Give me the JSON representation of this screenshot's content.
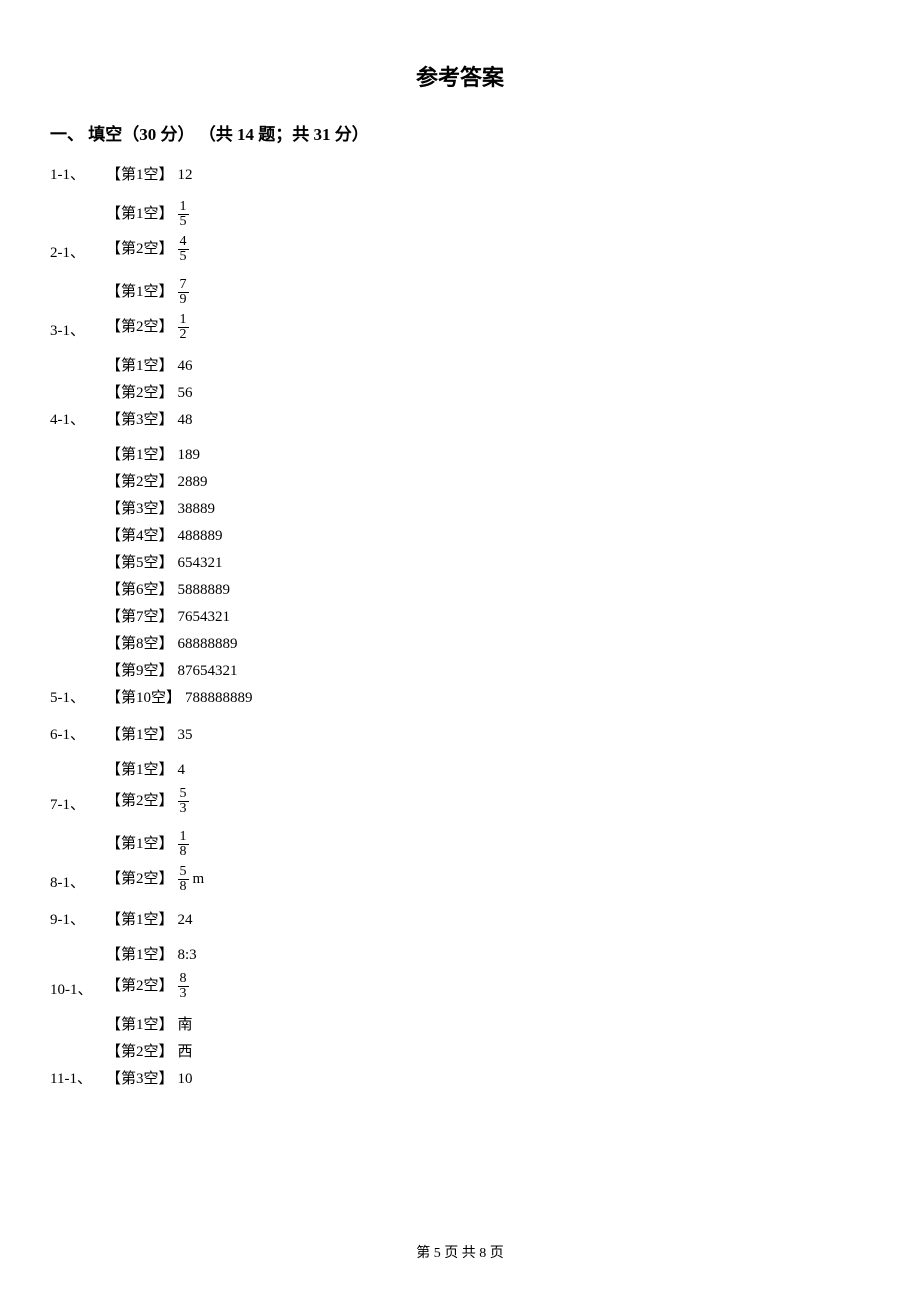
{
  "title": "参考答案",
  "section_heading": "一、 填空（30 分） （共 14 题；共 31 分）",
  "blank_label_prefix": "【第",
  "blank_label_suffix": "空】",
  "questions": [
    {
      "num": "1-1、",
      "blanks": [
        {
          "i": 1,
          "type": "text",
          "value": "12"
        }
      ]
    },
    {
      "num": "2-1、",
      "blanks": [
        {
          "i": 1,
          "type": "frac",
          "n": "1",
          "d": "5"
        },
        {
          "i": 2,
          "type": "frac",
          "n": "4",
          "d": "5"
        }
      ]
    },
    {
      "num": "3-1、",
      "blanks": [
        {
          "i": 1,
          "type": "frac",
          "n": "7",
          "d": "9"
        },
        {
          "i": 2,
          "type": "frac",
          "n": "1",
          "d": "2"
        }
      ]
    },
    {
      "num": "4-1、",
      "blanks": [
        {
          "i": 1,
          "type": "text",
          "value": "46"
        },
        {
          "i": 2,
          "type": "text",
          "value": "56"
        },
        {
          "i": 3,
          "type": "text",
          "value": "48"
        }
      ]
    },
    {
      "num": "5-1、",
      "blanks": [
        {
          "i": 1,
          "type": "text",
          "value": "189"
        },
        {
          "i": 2,
          "type": "text",
          "value": "2889"
        },
        {
          "i": 3,
          "type": "text",
          "value": "38889"
        },
        {
          "i": 4,
          "type": "text",
          "value": "488889"
        },
        {
          "i": 5,
          "type": "text",
          "value": "654321"
        },
        {
          "i": 6,
          "type": "text",
          "value": "5888889"
        },
        {
          "i": 7,
          "type": "text",
          "value": "7654321"
        },
        {
          "i": 8,
          "type": "text",
          "value": "68888889"
        },
        {
          "i": 9,
          "type": "text",
          "value": "87654321"
        },
        {
          "i": 10,
          "type": "text",
          "value": "788888889"
        }
      ]
    },
    {
      "num": "6-1、",
      "blanks": [
        {
          "i": 1,
          "type": "text",
          "value": "35"
        }
      ]
    },
    {
      "num": "7-1、",
      "blanks": [
        {
          "i": 1,
          "type": "text",
          "value": "4"
        },
        {
          "i": 2,
          "type": "frac",
          "n": "5",
          "d": "3"
        }
      ]
    },
    {
      "num": "8-1、",
      "blanks": [
        {
          "i": 1,
          "type": "frac",
          "n": "1",
          "d": "8"
        },
        {
          "i": 2,
          "type": "frac",
          "n": "5",
          "d": "8",
          "unit": "m"
        }
      ]
    },
    {
      "num": "9-1、",
      "blanks": [
        {
          "i": 1,
          "type": "text",
          "value": "24"
        }
      ]
    },
    {
      "num": "10-1、",
      "blanks": [
        {
          "i": 1,
          "type": "text",
          "value": "8:3"
        },
        {
          "i": 2,
          "type": "frac",
          "n": "8",
          "d": "3"
        }
      ]
    },
    {
      "num": "11-1、",
      "blanks": [
        {
          "i": 1,
          "type": "text",
          "value": "南"
        },
        {
          "i": 2,
          "type": "text",
          "value": "西"
        },
        {
          "i": 3,
          "type": "text",
          "value": "10"
        }
      ]
    }
  ],
  "footer": {
    "prefix": "第 ",
    "page": "5",
    "mid": " 页 共 ",
    "total": "8",
    "suffix": " 页"
  }
}
